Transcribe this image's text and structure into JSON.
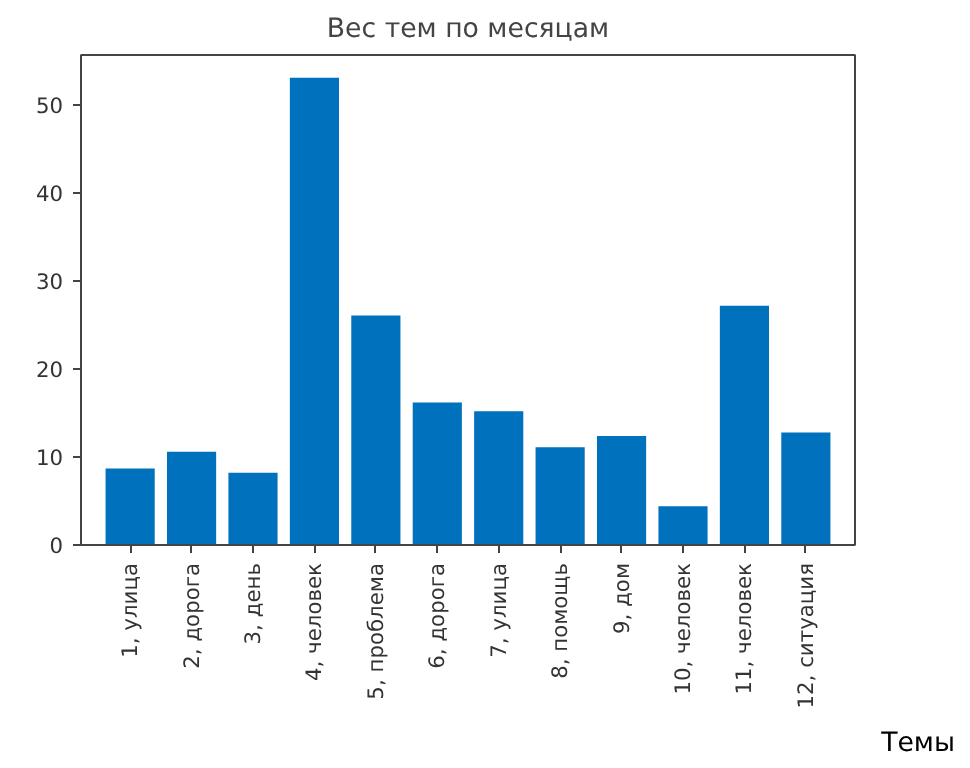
{
  "chart_data": {
    "type": "bar",
    "title": "Вес тем по месяцам",
    "xlabel": "Темы",
    "categories": [
      "1, улица",
      "2, дорога",
      "3, день",
      "4, человек",
      "5, проблема",
      "6, дорога",
      "7, улица",
      "8, помощь",
      "9, дом",
      "10, человек",
      "11, человек",
      "12, ситуация"
    ],
    "values": [
      8.7,
      10.6,
      8.2,
      53.1,
      26.1,
      16.2,
      15.2,
      11.1,
      12.4,
      4.4,
      27.2,
      12.8
    ],
    "color": "#0071bc",
    "ylim": [
      0,
      55.7
    ],
    "yticks": [
      0,
      10,
      20,
      30,
      40,
      50
    ],
    "grid": false
  }
}
